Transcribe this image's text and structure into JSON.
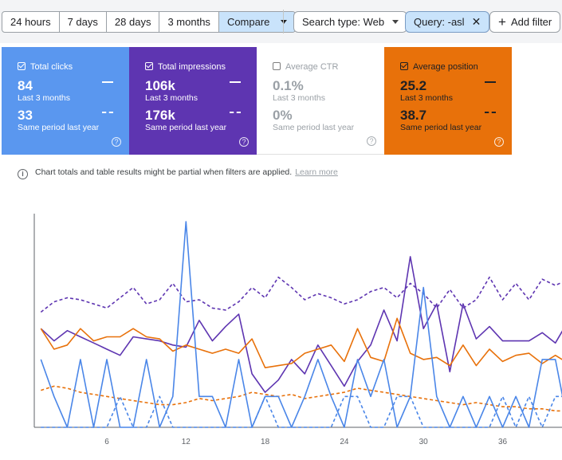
{
  "filters": {
    "date_options": [
      "24 hours",
      "7 days",
      "28 days",
      "3 months",
      "Compare"
    ],
    "active_option": "Compare",
    "search_type": "Search type: Web",
    "query": "Query: -asl",
    "add_filter": "Add filter"
  },
  "cards": [
    {
      "label": "Total clicks",
      "checked": true,
      "value": "84",
      "period": "Last 3 months",
      "compare_value": "33",
      "compare_period": "Same period last year",
      "color": "#5a97ef"
    },
    {
      "label": "Total impressions",
      "checked": true,
      "value": "106k",
      "period": "Last 3 months",
      "compare_value": "176k",
      "compare_period": "Same period last year",
      "color": "#5e35b1"
    },
    {
      "label": "Average CTR",
      "checked": false,
      "value": "0.1%",
      "period": "Last 3 months",
      "compare_value": "0%",
      "compare_period": "Same period last year",
      "color": "#ffffff"
    },
    {
      "label": "Average position",
      "checked": true,
      "value": "25.2",
      "period": "Last 3 months",
      "compare_value": "38.7",
      "compare_period": "Same period last year",
      "color": "#e8710a"
    }
  ],
  "info": {
    "text": "Chart totals and table results might be partial when filters are applied.",
    "link": "Learn more"
  },
  "chart_data": {
    "type": "line",
    "x": [
      1,
      2,
      3,
      4,
      5,
      6,
      7,
      8,
      9,
      10,
      11,
      12,
      13,
      14,
      15,
      16,
      17,
      18,
      19,
      20,
      21,
      22,
      23,
      24,
      25,
      26,
      27,
      28,
      29,
      30,
      31,
      32,
      33,
      34,
      35,
      36,
      37,
      38,
      39,
      40,
      41
    ],
    "xticks": [
      6,
      12,
      18,
      24,
      30,
      36
    ],
    "xlim": [
      0.5,
      40.5
    ],
    "ylim": [
      0,
      1
    ],
    "series": [
      {
        "id": "impressions",
        "color": "#5e35b1",
        "dashed": false,
        "values": [
          0.48,
          0.42,
          0.47,
          0.44,
          0.41,
          0.38,
          0.35,
          0.44,
          0.43,
          0.42,
          0.4,
          0.39,
          0.52,
          0.42,
          0.49,
          0.55,
          0.26,
          0.17,
          0.23,
          0.33,
          0.26,
          0.4,
          0.3,
          0.2,
          0.32,
          0.4,
          0.57,
          0.42,
          0.83,
          0.48,
          0.6,
          0.27,
          0.6,
          0.43,
          0.49,
          0.42,
          0.42,
          0.42,
          0.46,
          0.41,
          0.52
        ]
      },
      {
        "id": "impressions_prev",
        "color": "#5e35b1",
        "dashed": true,
        "values": [
          0.56,
          0.61,
          0.63,
          0.62,
          0.6,
          0.58,
          0.63,
          0.68,
          0.6,
          0.62,
          0.7,
          0.61,
          0.62,
          0.58,
          0.57,
          0.61,
          0.68,
          0.63,
          0.73,
          0.68,
          0.62,
          0.65,
          0.63,
          0.6,
          0.62,
          0.66,
          0.68,
          0.63,
          0.7,
          0.65,
          0.58,
          0.67,
          0.58,
          0.62,
          0.73,
          0.62,
          0.7,
          0.62,
          0.72,
          0.69,
          0.72
        ]
      },
      {
        "id": "position",
        "color": "#e8710a",
        "dashed": false,
        "values": [
          0.48,
          0.38,
          0.4,
          0.48,
          0.42,
          0.44,
          0.44,
          0.48,
          0.44,
          0.43,
          0.37,
          0.4,
          0.38,
          0.36,
          0.38,
          0.36,
          0.43,
          0.29,
          0.3,
          0.31,
          0.36,
          0.38,
          0.4,
          0.32,
          0.48,
          0.34,
          0.32,
          0.53,
          0.36,
          0.33,
          0.34,
          0.3,
          0.4,
          0.3,
          0.38,
          0.32,
          0.35,
          0.36,
          0.31,
          0.35,
          0.31
        ]
      },
      {
        "id": "position_prev",
        "color": "#e8710a",
        "dashed": true,
        "values": [
          0.18,
          0.2,
          0.19,
          0.17,
          0.16,
          0.15,
          0.14,
          0.13,
          0.12,
          0.11,
          0.11,
          0.12,
          0.14,
          0.13,
          0.14,
          0.15,
          0.17,
          0.16,
          0.15,
          0.16,
          0.14,
          0.15,
          0.16,
          0.17,
          0.19,
          0.18,
          0.17,
          0.16,
          0.15,
          0.14,
          0.13,
          0.12,
          0.11,
          0.12,
          0.11,
          0.1,
          0.1,
          0.09,
          0.09,
          0.08,
          0.08
        ]
      },
      {
        "id": "clicks",
        "color": "#4a86e8",
        "dashed": false,
        "values": [
          0.33,
          0.15,
          0.0,
          0.33,
          0.0,
          0.33,
          0.0,
          0.0,
          0.33,
          0.0,
          0.15,
          1.0,
          0.15,
          0.15,
          0.0,
          0.33,
          0.0,
          0.15,
          0.15,
          0.0,
          0.15,
          0.33,
          0.15,
          0.0,
          0.33,
          0.15,
          0.33,
          0.0,
          0.15,
          0.68,
          0.15,
          0.0,
          0.15,
          0.0,
          0.15,
          0.0,
          0.15,
          0.0,
          0.33,
          0.33,
          0.0
        ]
      },
      {
        "id": "clicks_prev",
        "color": "#4a86e8",
        "dashed": true,
        "values": [
          0.0,
          0.0,
          0.0,
          0.0,
          0.0,
          0.0,
          0.15,
          0.0,
          0.0,
          0.15,
          0.0,
          0.0,
          0.0,
          0.0,
          0.0,
          0.0,
          0.0,
          0.15,
          0.0,
          0.0,
          0.0,
          0.0,
          0.0,
          0.15,
          0.15,
          0.0,
          0.0,
          0.15,
          0.15,
          0.0,
          0.0,
          0.0,
          0.0,
          0.0,
          0.0,
          0.15,
          0.0,
          0.15,
          0.0,
          0.15,
          0.15
        ]
      }
    ]
  }
}
